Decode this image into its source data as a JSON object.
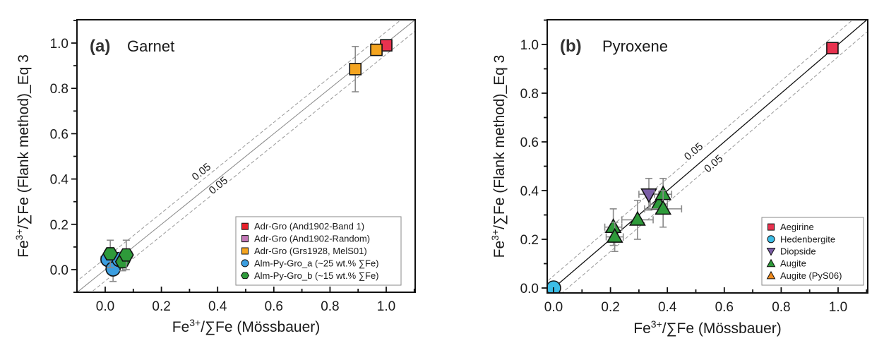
{
  "chart_data": [
    {
      "type": "scatter",
      "panel_tag": "(a)",
      "title": "Garnet",
      "xlabel": {
        "base": "Fe",
        "sup": "3+",
        "rest": "/∑Fe (Mössbauer)"
      },
      "ylabel": {
        "base": "Fe",
        "sup": "3+",
        "rest": "/∑Fe (Flank method)_Eq 3"
      },
      "xlim": [
        -0.1,
        1.1
      ],
      "ylim": [
        -0.1,
        1.1
      ],
      "xticks": [
        "0.0",
        "0.2",
        "0.4",
        "0.6",
        "0.8",
        "1.0"
      ],
      "yticks": [
        "0.0",
        "0.2",
        "0.4",
        "0.6",
        "0.8",
        "1.0"
      ],
      "reference_line": {
        "style": "solid",
        "color": "#888888",
        "label": "1:1"
      },
      "bands": [
        {
          "offset": 0.05,
          "label": "0.05"
        },
        {
          "offset": -0.05,
          "label": "0.05"
        }
      ],
      "grid": false,
      "legend_position": "bottom-right",
      "series": [
        {
          "name": "Adr-Gro (And1902-Band 1)",
          "marker": "square",
          "color": "#e8324f",
          "legend_color": "#e8202a",
          "points": [
            {
              "x": 1.0,
              "y": 0.99,
              "xerr": 0.02,
              "yerr": 0.01
            }
          ]
        },
        {
          "name": "Adr-Gro (And1902-Random)",
          "marker": "square",
          "color": "#c377b7",
          "points": []
        },
        {
          "name": "Adr-Gro (Grs1928, MelS01)",
          "marker": "square",
          "color": "#f4a41f",
          "points": [
            {
              "x": 0.89,
              "y": 0.885,
              "xerr": 0.01,
              "yerr": 0.1
            },
            {
              "x": 0.965,
              "y": 0.97,
              "xerr": 0.02,
              "yerr": 0.01
            }
          ]
        },
        {
          "name": "Alm-Py-Gro_a (~25 wt.% ∑Fe)",
          "marker": "circle",
          "color": "#3b9ee0",
          "points": [
            {
              "x": 0.01,
              "y": 0.045,
              "xerr": 0.025,
              "yerr": 0.02
            },
            {
              "x": 0.028,
              "y": 0.003,
              "xerr": 0.02,
              "yerr": 0.055
            },
            {
              "x": 0.05,
              "y": 0.045,
              "xerr": 0.02,
              "yerr": 0.03
            }
          ]
        },
        {
          "name": "Alm-Py-Gro_b (~15 wt.% ∑Fe)",
          "marker": "hexagon",
          "color": "#2e9a3a",
          "points": [
            {
              "x": 0.018,
              "y": 0.07,
              "xerr": 0.02,
              "yerr": 0.06
            },
            {
              "x": 0.062,
              "y": 0.035,
              "xerr": 0.02,
              "yerr": 0.04
            },
            {
              "x": 0.075,
              "y": 0.065,
              "xerr": 0.02,
              "yerr": 0.065
            }
          ]
        }
      ]
    },
    {
      "type": "scatter",
      "panel_tag": "(b)",
      "title": "Pyroxene",
      "xlabel": {
        "base": "Fe",
        "sup": "3+",
        "rest": "/∑Fe (Mössbauer)"
      },
      "ylabel": {
        "base": "Fe",
        "sup": "3+",
        "rest": "/∑Fe (Flank method)_Eq 3"
      },
      "xlim": [
        -0.02,
        1.1
      ],
      "ylim": [
        -0.02,
        1.1
      ],
      "xticks": [
        "0.0",
        "0.2",
        "0.4",
        "0.6",
        "0.8",
        "1.0"
      ],
      "yticks": [
        "0.0",
        "0.2",
        "0.4",
        "0.6",
        "0.8",
        "1.0"
      ],
      "reference_line": {
        "style": "solid",
        "color": "#111111",
        "label": "1:1"
      },
      "bands": [
        {
          "offset": 0.05,
          "label": "0.05"
        },
        {
          "offset": -0.05,
          "label": "0.05"
        }
      ],
      "grid": false,
      "legend_position": "bottom-right",
      "series": [
        {
          "name": "Aegirine",
          "marker": "square",
          "color": "#e8324f",
          "points": [
            {
              "x": 0.98,
              "y": 0.985,
              "xerr": 0,
              "yerr": 0
            }
          ]
        },
        {
          "name": "Hedenbergite",
          "marker": "circle",
          "color": "#3cbde6",
          "points": [
            {
              "x": 0.0,
              "y": 0.0,
              "xerr": 0.01,
              "yerr": 0.01
            }
          ]
        },
        {
          "name": "Diopside",
          "marker": "triangle-down",
          "color": "#7b5ea7",
          "points": [
            {
              "x": 0.335,
              "y": 0.385,
              "xerr": 0.035,
              "yerr": 0.065
            }
          ]
        },
        {
          "name": "Augite",
          "marker": "triangle-up",
          "color": "#2e9a3a",
          "points": [
            {
              "x": 0.21,
              "y": 0.25,
              "xerr": 0.03,
              "yerr": 0.075
            },
            {
              "x": 0.215,
              "y": 0.21,
              "xerr": 0.03,
              "yerr": 0.06
            },
            {
              "x": 0.295,
              "y": 0.28,
              "xerr": 0.055,
              "yerr": 0.08
            },
            {
              "x": 0.37,
              "y": 0.345,
              "xerr": 0.03,
              "yerr": 0.04
            },
            {
              "x": 0.385,
              "y": 0.385,
              "xerr": 0.03,
              "yerr": 0.065
            },
            {
              "x": 0.385,
              "y": 0.325,
              "xerr": 0.065,
              "yerr": 0.075
            }
          ]
        },
        {
          "name": "Augite (PyS06)",
          "marker": "triangle-up",
          "color": "#f08a1c",
          "points": []
        }
      ]
    }
  ]
}
